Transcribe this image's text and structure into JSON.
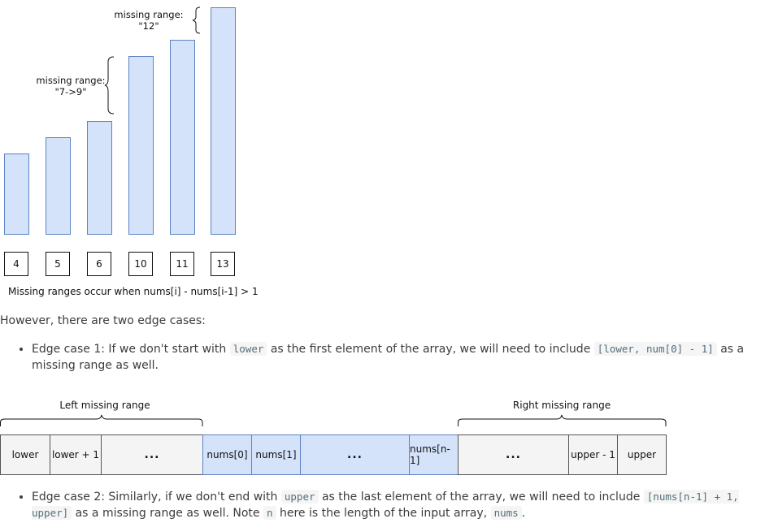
{
  "top_diagram": {
    "bars": [
      {
        "value": "4",
        "height": 100
      },
      {
        "value": "5",
        "height": 120
      },
      {
        "value": "6",
        "height": 140
      },
      {
        "value": "10",
        "height": 220
      },
      {
        "value": "11",
        "height": 240
      },
      {
        "value": "13",
        "height": 280
      }
    ],
    "missing_label_1_line1": "missing range:",
    "missing_label_1_line2": "\"7->9\"",
    "missing_label_2_line1": "missing range:",
    "missing_label_2_line2": "\"12\"",
    "caption": "Missing ranges occur when nums[i] - nums[i-1] > 1",
    "colors": {
      "bar_fill": "#d4e3f9",
      "bar_stroke": "#5b82c4"
    }
  },
  "text": {
    "intro": "However, there are two edge cases:",
    "edge1_a": "Edge case 1: If we don't start with ",
    "edge1_code1": "lower",
    "edge1_b": " as the first element of the array, we will need to include ",
    "edge1_code2": "[lower, num[0] - 1]",
    "edge1_c": " as a missing range as well.",
    "edge2_a": "Edge case 2: Similarly, if we don't end with ",
    "edge2_code1": "upper",
    "edge2_b": " as the last element of the array, we will need to include ",
    "edge2_code2": "[nums[n-1] + 1, upper]",
    "edge2_c": " as a missing range as well. Note ",
    "edge2_code3": "n",
    "edge2_d": " here is the length of the input array, ",
    "edge2_code4": "nums",
    "edge2_e": "."
  },
  "array_diagram": {
    "left_label": "Left missing range",
    "right_label": "Right missing range",
    "cells": [
      "lower",
      "lower + 1",
      "...",
      "nums[0]",
      "nums[1]",
      "...",
      "nums[n-1]",
      "...",
      "upper - 1",
      "upper"
    ]
  }
}
